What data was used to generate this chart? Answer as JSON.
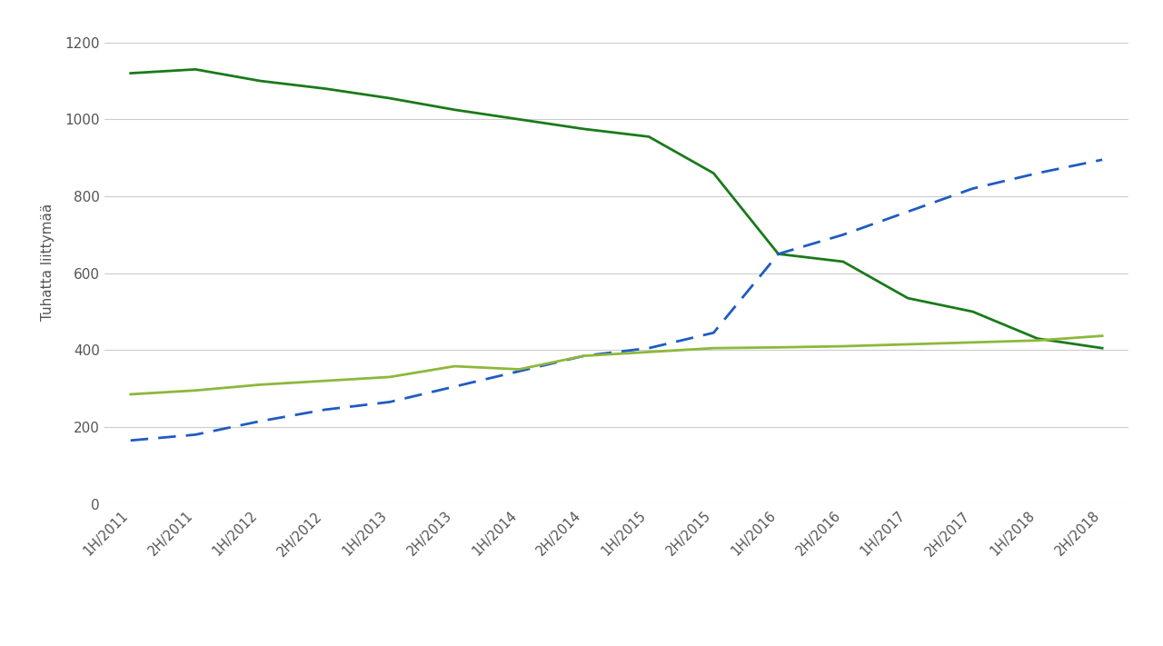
{
  "x_labels": [
    "1H/2011",
    "2H/2011",
    "1H/2012",
    "2H/2012",
    "1H/2013",
    "2H/2013",
    "1H/2014",
    "2H/2014",
    "1H/2015",
    "2H/2015",
    "1H/2016",
    "2H/2016",
    "1H/2017",
    "2H/2017",
    "1H/2018",
    "2H/2018"
  ],
  "kupari": [
    1120,
    1130,
    1100,
    1080,
    1055,
    1025,
    1000,
    975,
    955,
    860,
    650,
    630,
    535,
    500,
    430,
    405
  ],
  "kuitu": [
    165,
    180,
    215,
    245,
    265,
    305,
    345,
    385,
    405,
    445,
    650,
    700,
    760,
    820,
    860,
    895
  ],
  "kaapeli": [
    285,
    295,
    310,
    320,
    330,
    358,
    350,
    385,
    395,
    405,
    407,
    410,
    415,
    420,
    425,
    437
  ],
  "kupari_color": "#1a7a1a",
  "kuitu_color": "#1f5bc4",
  "kaapeli_color": "#8db83a",
  "ylabel": "Tuhatta liittymää",
  "ylim": [
    0,
    1260
  ],
  "yticks": [
    0,
    200,
    400,
    600,
    800,
    1000,
    1200
  ],
  "bg_color": "#ffffff",
  "grid_color": "#cccccc",
  "tick_label_color": "#555555",
  "ylabel_color": "#555555"
}
